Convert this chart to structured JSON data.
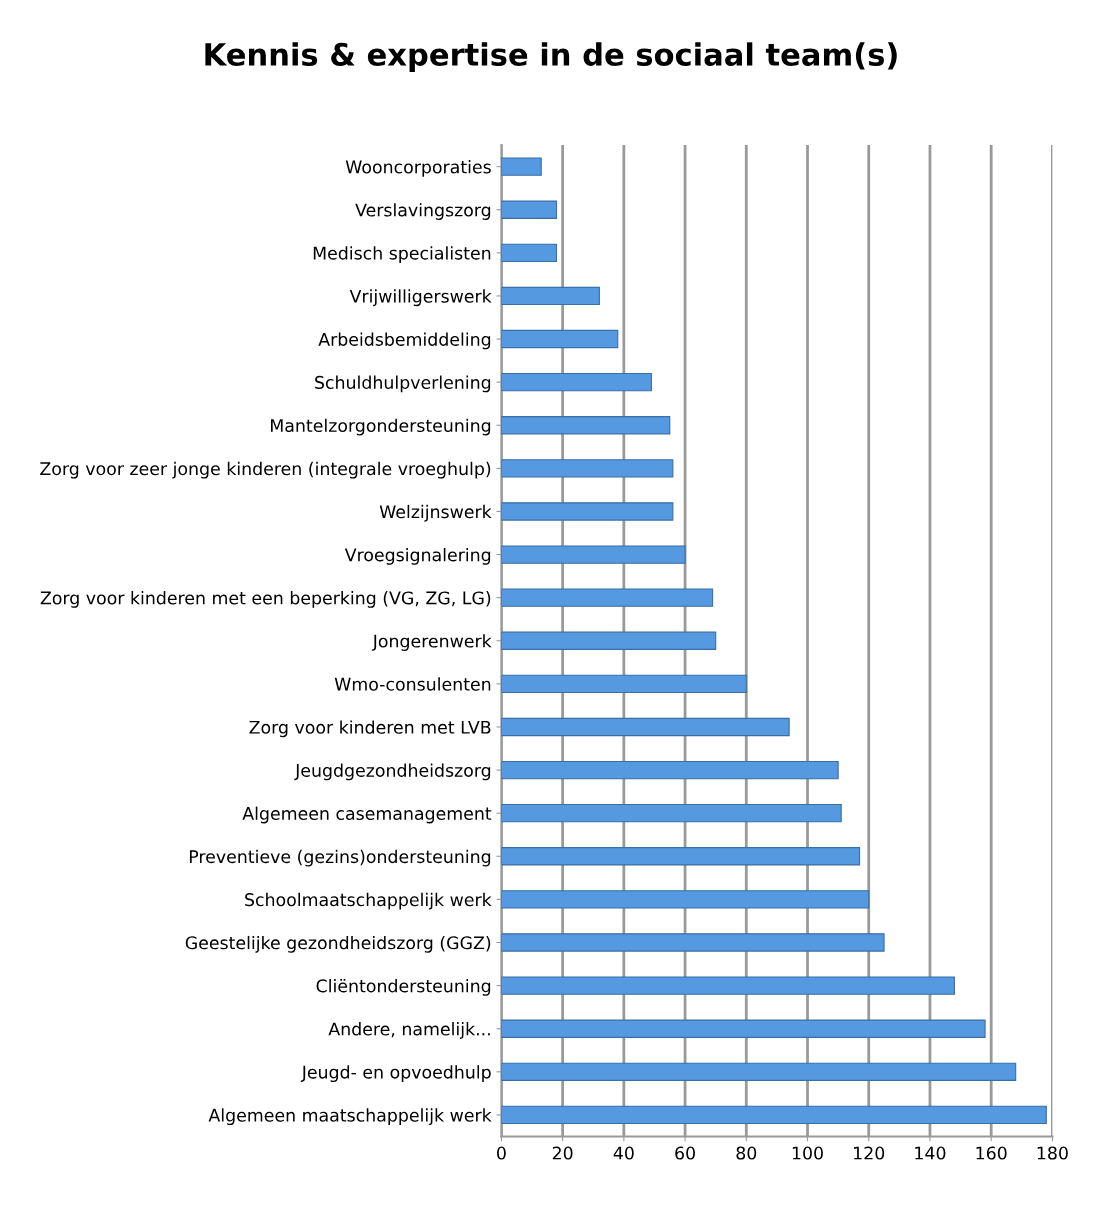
{
  "chart_data": {
    "type": "bar",
    "orientation": "horizontal",
    "title": "Kennis & expertise in de sociaal team(s)",
    "categories": [
      "Wooncorporaties",
      "Verslavingszorg",
      "Medisch specialisten",
      "Vrijwilligerswerk",
      "Arbeidsbemiddeling",
      "Schuldhulpverlening",
      "Mantelzorgondersteuning",
      "Zorg voor zeer jonge kinderen (integrale vroeghulp)",
      "Welzijnswerk",
      "Vroegsignalering",
      "Zorg voor kinderen met een beperking (VG, ZG, LG)",
      "Jongerenwerk",
      "Wmo-consulenten",
      "Zorg voor kinderen met LVB",
      "Jeugdgezondheidszorg",
      "Algemeen casemanagement",
      "Preventieve (gezins)ondersteuning",
      "Schoolmaatschappelijk werk",
      "Geestelijke gezondheidszorg (GGZ)",
      "Cliëntondersteuning",
      "Andere, namelijk...",
      "Jeugd- en opvoedhulp",
      "Algemeen maatschappelijk werk"
    ],
    "values": [
      13,
      18,
      18,
      32,
      38,
      49,
      55,
      56,
      56,
      60,
      69,
      70,
      80,
      94,
      110,
      111,
      117,
      120,
      125,
      148,
      158,
      168,
      178
    ],
    "color": "#5599e0",
    "xlim": [
      0,
      180
    ],
    "xticks": [
      0,
      20,
      40,
      60,
      80,
      100,
      120,
      140,
      160,
      180
    ],
    "grid": "x"
  }
}
